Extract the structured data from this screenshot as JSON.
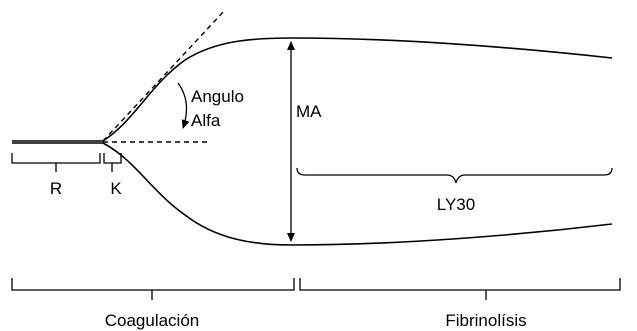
{
  "labels": {
    "r": "R",
    "k": "K",
    "angle_line1": "Angulo",
    "angle_line2": "Alfa",
    "ma": "MA",
    "ly30": "LY30",
    "coagulation": "Coagulación",
    "fibrinolysis": "Fibrinolísis"
  },
  "colors": {
    "ink": "#000000",
    "background": "#ffffff"
  }
}
